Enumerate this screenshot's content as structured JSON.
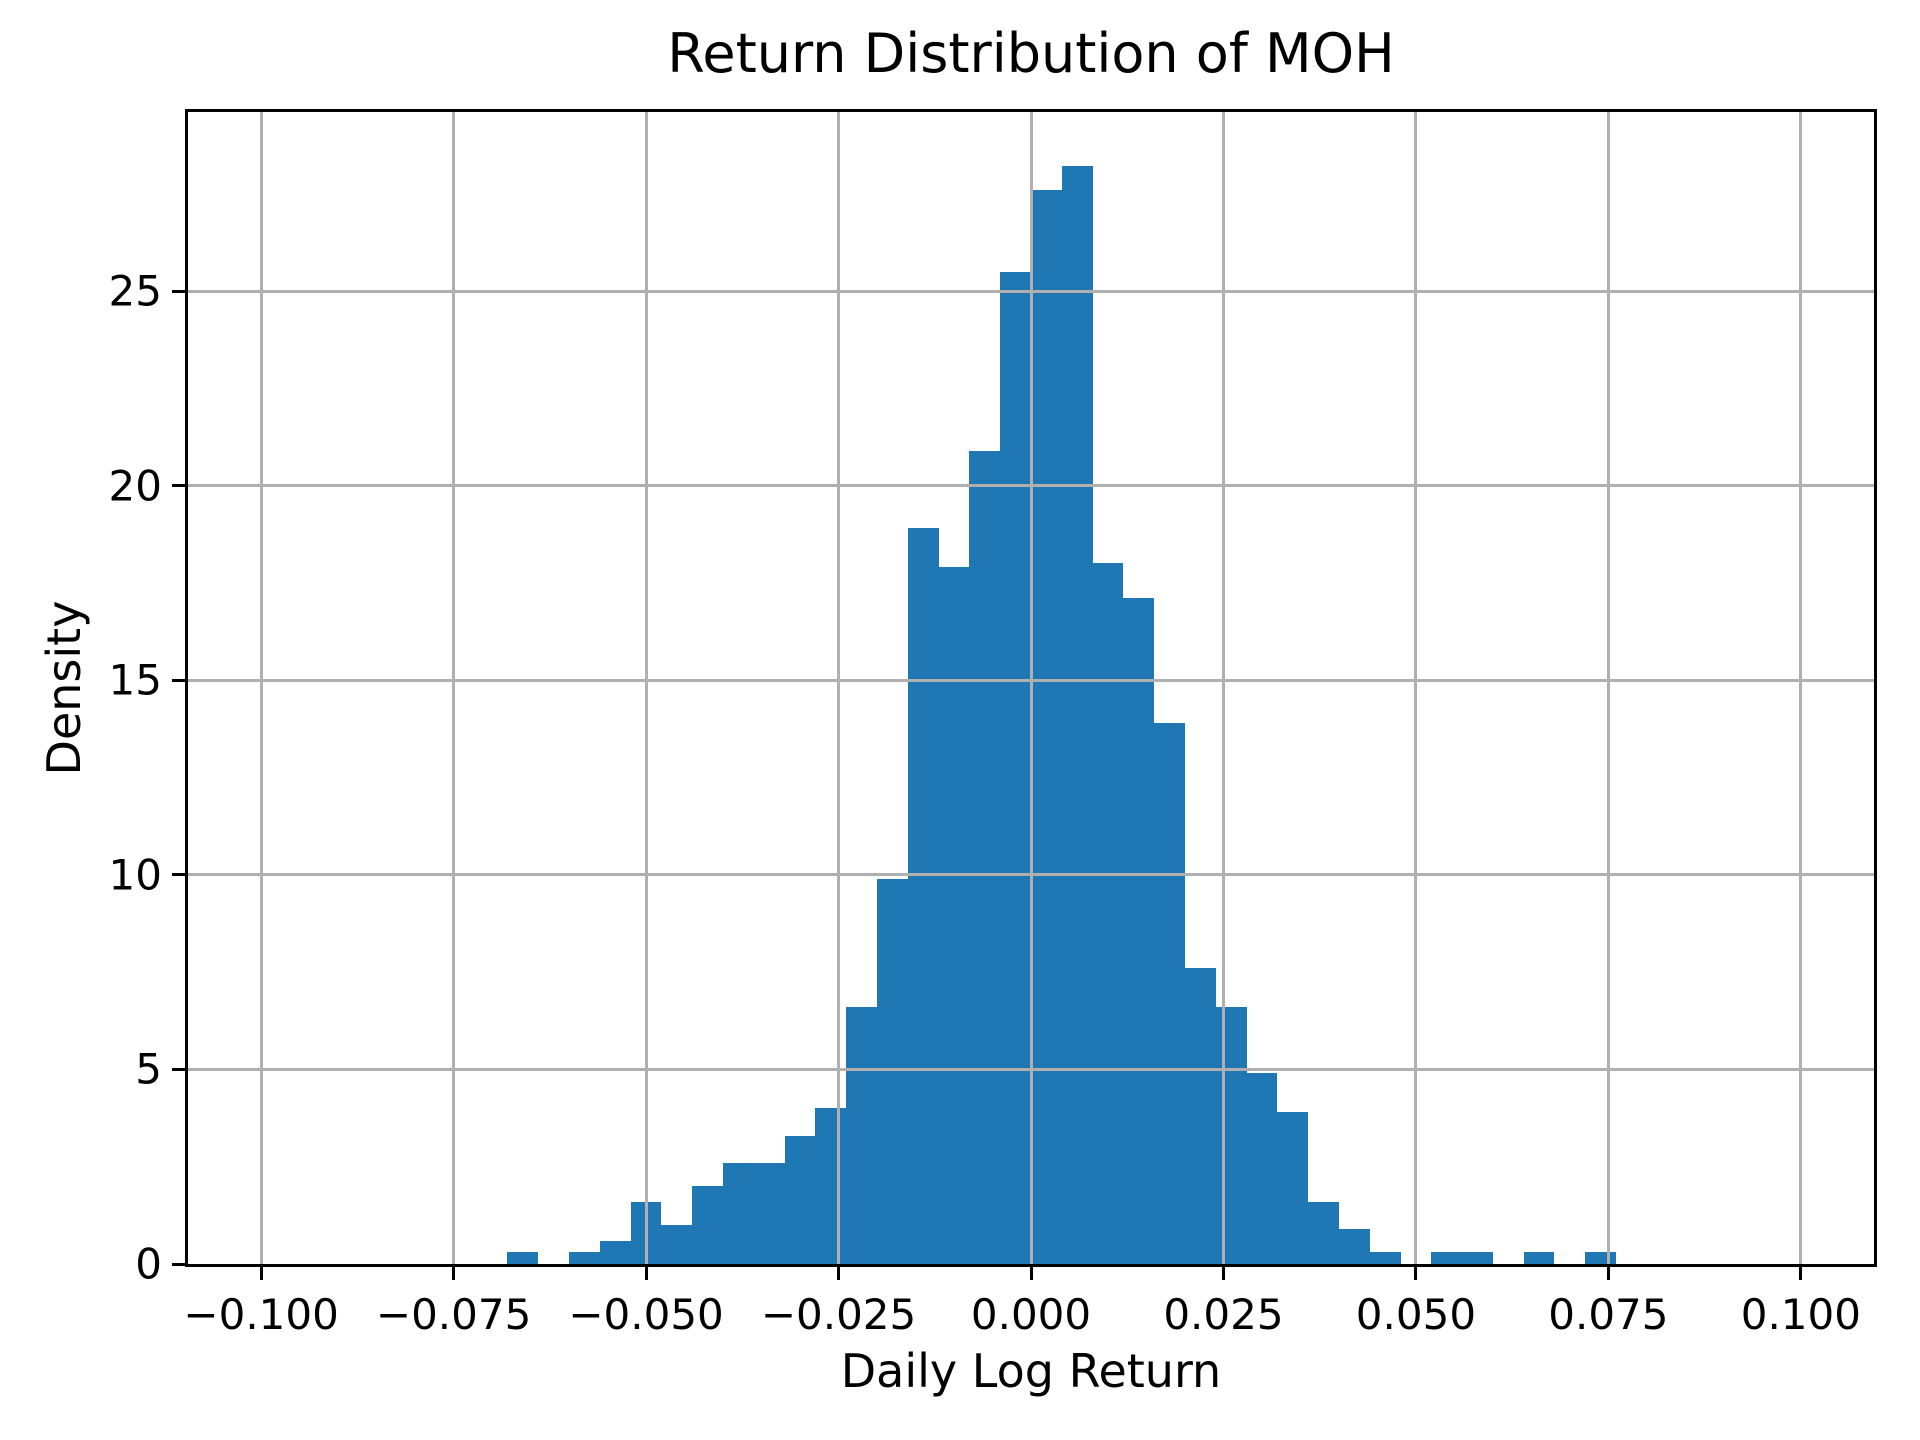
{
  "figure": {
    "background": "#ffffff"
  },
  "chart_data": {
    "type": "bar",
    "subtype": "histogram",
    "title": "Return Distribution of MOH",
    "xlabel": "Daily Log Return",
    "ylabel": "Density",
    "bar_color": "#1f77b4",
    "grid": true,
    "grid_color": "#b0b0b0",
    "axisbelow": false,
    "legend": null,
    "xlim": [
      -0.1095,
      0.1095
    ],
    "ylim": [
      0,
      29.6
    ],
    "xticks": [
      -0.1,
      -0.075,
      -0.05,
      -0.025,
      0.0,
      0.025,
      0.05,
      0.075,
      0.1
    ],
    "xtick_labels": [
      "−0.100",
      "−0.075",
      "−0.050",
      "−0.025",
      "0.000",
      "0.025",
      "0.050",
      "0.075",
      "0.100"
    ],
    "yticks": [
      0,
      5,
      10,
      15,
      20,
      25
    ],
    "ytick_labels": [
      "0",
      "5",
      "10",
      "15",
      "20",
      "25"
    ],
    "bin_width": 0.004,
    "bin_edges": [
      -0.068,
      -0.064,
      -0.06,
      -0.056,
      -0.052,
      -0.048,
      -0.044,
      -0.04,
      -0.036,
      -0.032,
      -0.028,
      -0.024,
      -0.02,
      -0.016,
      -0.012,
      -0.008,
      -0.004,
      0.0,
      0.004,
      0.008,
      0.012,
      0.016,
      0.02,
      0.024,
      0.028,
      0.032,
      0.036,
      0.04,
      0.044,
      0.048,
      0.052,
      0.056,
      0.06,
      0.064,
      0.068,
      0.072,
      0.076
    ],
    "densities": [
      0.3,
      0,
      0.3,
      0.6,
      1.6,
      1.0,
      2.0,
      2.6,
      2.6,
      3.3,
      4.0,
      6.6,
      9.9,
      18.9,
      17.9,
      20.9,
      25.5,
      27.6,
      28.2,
      18.0,
      17.1,
      13.9,
      7.6,
      6.6,
      4.9,
      3.9,
      1.6,
      0.9,
      0.3,
      0,
      0.3,
      0.3,
      0,
      0.3,
      0,
      0.3
    ]
  }
}
